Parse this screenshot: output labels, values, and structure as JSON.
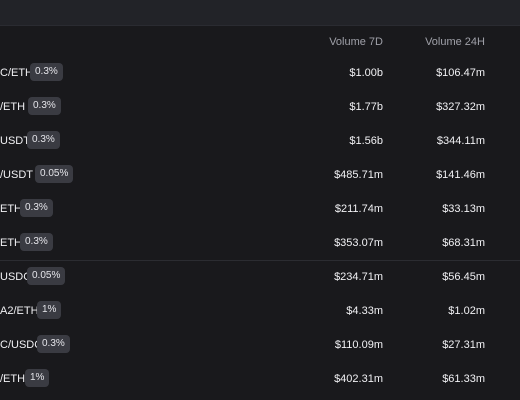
{
  "header": {
    "volume_7d": "Volume 7D",
    "volume_24h": "Volume 24H"
  },
  "pools": [
    {
      "pair": "C/ETH",
      "fee": "0.3%",
      "volume_7d": "$1.00b",
      "volume_24h": "$106.47m"
    },
    {
      "pair": "/ETH",
      "fee": "0.3%",
      "volume_7d": "$1.77b",
      "volume_24h": "$327.32m"
    },
    {
      "pair": "USDT",
      "fee": "0.3%",
      "volume_7d": "$1.56b",
      "volume_24h": "$344.11m"
    },
    {
      "pair": "/USDT",
      "fee": "0.05%",
      "volume_7d": "$485.71m",
      "volume_24h": "$141.46m"
    },
    {
      "pair": "ETH",
      "fee": "0.3%",
      "volume_7d": "$211.74m",
      "volume_24h": "$33.13m"
    },
    {
      "pair": "ETH",
      "fee": "0.3%",
      "volume_7d": "$353.07m",
      "volume_24h": "$68.31m"
    },
    {
      "pair": "USDC",
      "fee": "0.05%",
      "volume_7d": "$234.71m",
      "volume_24h": "$56.45m"
    },
    {
      "pair": "A2/ETH",
      "fee": "1%",
      "volume_7d": "$4.33m",
      "volume_24h": "$1.02m"
    },
    {
      "pair": "C/USDC",
      "fee": "0.3%",
      "volume_7d": "$110.09m",
      "volume_24h": "$27.31m"
    },
    {
      "pair": "/ETH",
      "fee": "1%",
      "volume_7d": "$402.31m",
      "volume_24h": "$61.33m"
    }
  ]
}
